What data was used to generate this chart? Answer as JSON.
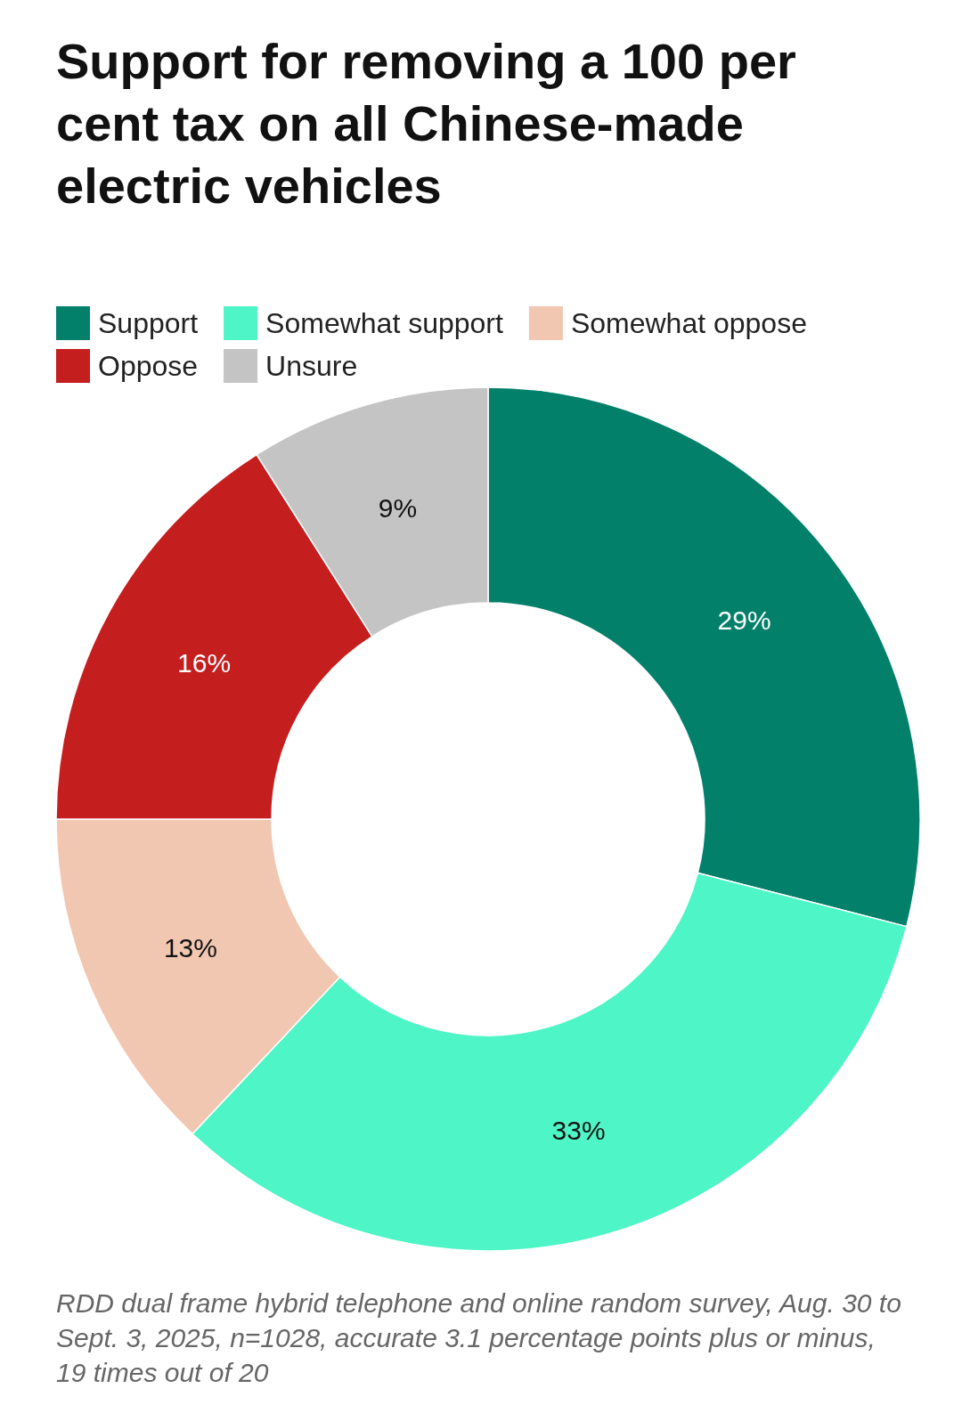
{
  "chart_data": {
    "type": "donut",
    "title": "Support for removing a 100 per cent tax on all Chinese-made electric vehicles",
    "categories": [
      "Support",
      "Somewhat support",
      "Somewhat oppose",
      "Oppose",
      "Unsure"
    ],
    "values": [
      29,
      33,
      13,
      16,
      9
    ],
    "colors": [
      "#03806a",
      "#4ef5c6",
      "#f1c7b2",
      "#c51e1e",
      "#c4c4c4"
    ],
    "value_labels": [
      "29%",
      "33%",
      "13%",
      "16%",
      "9%"
    ],
    "legend": "top left",
    "annotations": [
      "RDD dual frame hybrid telephone and online random survey, Aug. 30 to Sept. 3, 2025, n=1028, accurate 3.1 percentage points plus or minus, 19 times out of 20"
    ]
  }
}
